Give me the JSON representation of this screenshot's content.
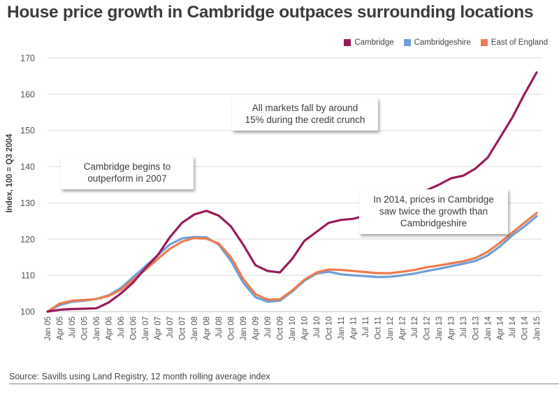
{
  "chart_data": {
    "type": "line",
    "title": "House price growth in Cambridge outpaces surrounding locations",
    "xlabel": "",
    "ylabel": "Index, 100 = Q3 2004",
    "ylim": [
      100,
      170
    ],
    "yticks": [
      100,
      110,
      120,
      130,
      140,
      150,
      160,
      170
    ],
    "grid": true,
    "legend_position": "top-right",
    "x": [
      "Jan 05",
      "Apr 05",
      "Jul 05",
      "Oct 05",
      "Jan 06",
      "Apr 06",
      "Jul 06",
      "Oct 06",
      "Jan 07",
      "Apr 07",
      "Jul 07",
      "Oct 07",
      "Jan 08",
      "Apr 08",
      "Jul 08",
      "Oct 08",
      "Jan 09",
      "Apr 09",
      "Jul 09",
      "Oct 09",
      "Jan 10",
      "Apr 10",
      "Jul 10",
      "Oct 10",
      "Jan 11",
      "Apr 11",
      "Jul 11",
      "Oct 11",
      "Jan 12",
      "Apr 12",
      "Jul 12",
      "Oct 12",
      "Jan 13",
      "Apr 13",
      "Jul 13",
      "Oct 13",
      "Jan 14",
      "Apr 14",
      "Jul 14",
      "Oct 14",
      "Jan 15"
    ],
    "series": [
      {
        "name": "Cambridge",
        "color": "#9b1b5a",
        "values": [
          100,
          100.5,
          100.7,
          100.8,
          100.9,
          102.5,
          105,
          108,
          112,
          115.5,
          120.5,
          124.5,
          126.8,
          127.8,
          126.5,
          123.5,
          118.5,
          112.8,
          111.2,
          110.8,
          114.5,
          119.5,
          122,
          124.5,
          125.3,
          125.6,
          126.5,
          127.5,
          129,
          130.5,
          132,
          133.5,
          135,
          136.8,
          137.5,
          139.5,
          142.5,
          148,
          153.5,
          160,
          166
        ]
      },
      {
        "name": "Cambridgeshire",
        "color": "#6f9fd8",
        "values": [
          100,
          101.8,
          102.7,
          103.0,
          103.5,
          104.5,
          106.5,
          109.5,
          112.5,
          115.5,
          118.5,
          120.2,
          120.6,
          120.5,
          118.5,
          114.0,
          108.0,
          104.0,
          102.7,
          103.0,
          105.5,
          108.5,
          110.5,
          111.0,
          110.3,
          110.0,
          109.8,
          109.5,
          109.6,
          110.0,
          110.5,
          111.2,
          111.8,
          112.5,
          113.2,
          114.0,
          115.5,
          118.0,
          121.0,
          123.5,
          126.3
        ]
      },
      {
        "name": "East of England",
        "color": "#ec7c4f",
        "values": [
          100,
          102.2,
          103.0,
          103.2,
          103.5,
          104.3,
          106.0,
          108.8,
          111.5,
          114.5,
          117.3,
          119.3,
          120.3,
          120.1,
          118.8,
          115.0,
          109.0,
          104.8,
          103.3,
          103.4,
          105.8,
          108.8,
          110.8,
          111.6,
          111.5,
          111.2,
          110.9,
          110.6,
          110.6,
          111.0,
          111.5,
          112.2,
          112.7,
          113.3,
          113.9,
          114.8,
          116.5,
          119.0,
          121.8,
          124.5,
          127.2
        ]
      }
    ],
    "annotations": [
      {
        "lines": [
          "Cambridge begins to",
          "outperform in 2007"
        ]
      },
      {
        "lines": [
          "All markets fall by around",
          "15% during the credit crunch"
        ]
      },
      {
        "lines": [
          "In 2014, prices in Cambridge",
          "saw twice the growth than",
          "Cambridgeshire"
        ]
      }
    ],
    "source": "Source: Savills using Land Registry, 12 month rolling average index"
  }
}
